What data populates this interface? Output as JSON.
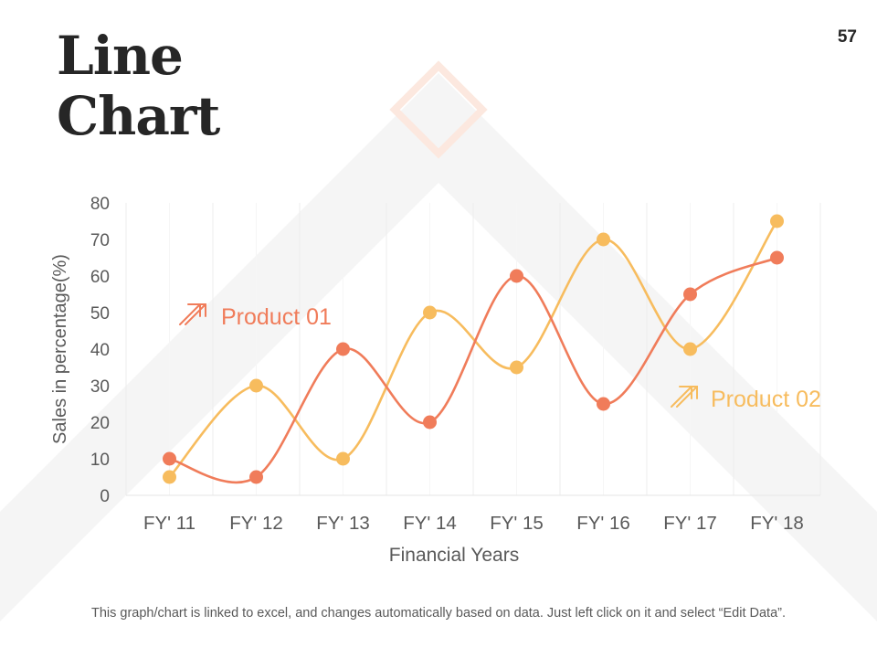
{
  "slide": {
    "title": "Line\nChart",
    "number": "57",
    "footnote": "This graph/chart is linked to excel, and changes automatically based on data. Just left click on it and select “Edit Data”."
  },
  "colors": {
    "product01": "#F07C5A",
    "product02": "#F7BC5E",
    "text": "#595959",
    "gridline": "#EDEDED",
    "decor": "#F5F5F5"
  },
  "chart_data": {
    "type": "line",
    "smooth": true,
    "categories": [
      "FY' 11",
      "FY' 12",
      "FY' 13",
      "FY' 14",
      "FY' 15",
      "FY' 16",
      "FY' 17",
      "FY' 18"
    ],
    "series": [
      {
        "name": "Product 01",
        "color": "#F07C5A",
        "values": [
          10,
          5,
          40,
          20,
          60,
          25,
          55,
          65
        ]
      },
      {
        "name": "Product 02",
        "color": "#F7BC5E",
        "values": [
          5,
          30,
          10,
          50,
          35,
          70,
          40,
          75
        ]
      }
    ],
    "xlabel": "Financial Years",
    "ylabel": "Sales in percentage(%)",
    "ylim": [
      0,
      80
    ],
    "yticks": [
      0,
      10,
      20,
      30,
      40,
      50,
      60,
      70,
      80
    ],
    "grid": "vertical"
  }
}
